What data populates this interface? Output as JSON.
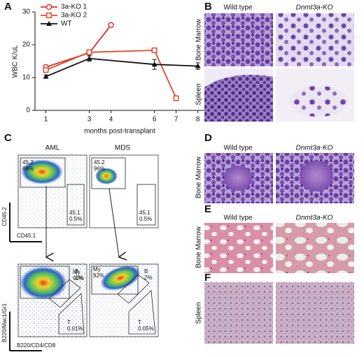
{
  "chart_data": {
    "type": "line",
    "xlabel": "months post-transplant",
    "ylabel": "WBC K/uL",
    "xlim": [
      0.5,
      8.3
    ],
    "xticks": [
      1,
      3,
      4,
      6,
      7,
      8
    ],
    "ylim": [
      0,
      30
    ],
    "yticks": [
      0,
      10,
      20,
      30
    ],
    "series": [
      {
        "name": "3a-KO 1",
        "color": "#d6322b",
        "marker": "circle",
        "x": [
          1,
          3,
          4
        ],
        "values": [
          13.2,
          17.5,
          26
        ]
      },
      {
        "name": "3a-KO 2",
        "color": "#e2482c",
        "marker": "square",
        "x": [
          1,
          3,
          6,
          7
        ],
        "values": [
          12.3,
          17.7,
          18.3,
          3.7
        ]
      },
      {
        "name": "WT",
        "color": "#111111",
        "marker": "triangle",
        "x": [
          1,
          3,
          6,
          8
        ],
        "values": [
          10.3,
          15.8,
          14,
          13.5
        ],
        "errors": [
          0.5,
          0.8,
          1.5,
          1
        ]
      }
    ]
  },
  "panel_labels": [
    "A",
    "B",
    "C",
    "D",
    "E",
    "F"
  ],
  "panel_b": {
    "columns": [
      "Wild type",
      "Dnmt3a-KO"
    ],
    "rows": [
      "Bone Marrow",
      "Spleen"
    ]
  },
  "panel_c": {
    "columns": [
      "AML",
      "MDS"
    ],
    "top_axes": [
      "CD45.2",
      "CD45.1"
    ],
    "bottom_axes": [
      "B220/Mac1/Gr1",
      "B220/CD4/CD8"
    ],
    "top_gates": [
      [
        "45.2",
        "89%",
        "45.1",
        "0.5%"
      ],
      [
        "45.2",
        "96%",
        "45.1",
        "0.5%"
      ]
    ],
    "bottom_gates": [
      [
        "My",
        "92%",
        "B",
        "1%",
        "T",
        "0.01%"
      ],
      [
        "My",
        "92%",
        "B",
        "2%",
        "T",
        "0.05%"
      ]
    ]
  },
  "panel_d": {
    "columns": [
      "Wild type",
      "Dnmt3a-KO"
    ],
    "rows": [
      "Bone Marrow"
    ]
  },
  "panel_e": {
    "columns": [
      "Wild type",
      "Dnmt3a-KO"
    ],
    "rows": [
      "Bone Marrow"
    ]
  },
  "panel_f": {
    "rows": [
      "Spleen"
    ]
  }
}
